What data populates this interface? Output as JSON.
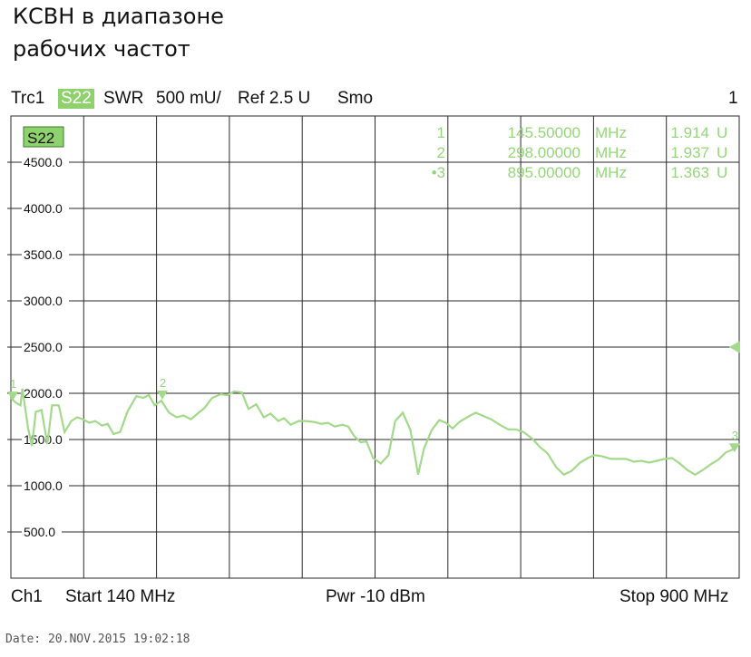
{
  "caption": {
    "line1": "КСВН в диапазоне",
    "line2": "рабочих частот"
  },
  "header": {
    "trace": "Trc1",
    "param": "S22",
    "format": "SWR",
    "scale": "500 mU/",
    "ref": "Ref 2.5 U",
    "smoothing": "Smo",
    "channel_num": "1"
  },
  "footer": {
    "channel": "Ch1",
    "start": "Start  140 MHz",
    "power": "Pwr  -10 dBm",
    "stop": "Stop  900 MHz"
  },
  "date_stamp": "Date: 20.NOV.2015   19:02:18",
  "colors": {
    "trace": "#a3d98a",
    "grid": "#2a2a2a",
    "marker_text": "#96d67a",
    "badge": "#8fd16d"
  },
  "chart_data": {
    "type": "line",
    "title": "",
    "xlabel": "",
    "ylabel": "",
    "trace_badge": "S22",
    "xlim": [
      140,
      900
    ],
    "ylim": [
      0,
      5000
    ],
    "y_tick_labels": [
      "4500.0",
      "4000.0",
      "3500.0",
      "3000.0",
      "2500.0",
      "2000.0",
      "1500.0",
      "1000.0",
      "500.0"
    ],
    "grid": true,
    "reference_level": 2500,
    "markers": [
      {
        "label": "1",
        "freq": "145.50000",
        "unit": "MHz",
        "value": "1.914",
        "value_unit": "U"
      },
      {
        "label": "2",
        "freq": "298.00000",
        "unit": "MHz",
        "value": "1.937",
        "value_unit": "U"
      },
      {
        "label": "•3",
        "freq": "895.00000",
        "unit": "MHz",
        "value": "1.363",
        "value_unit": "U"
      }
    ],
    "marker_points": [
      {
        "label": "1",
        "x": 142,
        "y": 1960
      },
      {
        "label": "2",
        "x": 298,
        "y": 1970
      },
      {
        "label": "3",
        "x": 895,
        "y": 1400
      }
    ],
    "series": [
      {
        "x": [
          140,
          145,
          150,
          152,
          158,
          162,
          166,
          172,
          178,
          183,
          190,
          196,
          203,
          209,
          215,
          222,
          228,
          235,
          241,
          247,
          254,
          262,
          271,
          278,
          284,
          290,
          297,
          305,
          313,
          320,
          328,
          336,
          342,
          350,
          359,
          366,
          373,
          381,
          388,
          396,
          404,
          411,
          419,
          425,
          432,
          440,
          448,
          456,
          464,
          471,
          478,
          486,
          492,
          498,
          505,
          511,
          518,
          526,
          534,
          541,
          549,
          557,
          565,
          571,
          579,
          587,
          594,
          601,
          608,
          616,
          625,
          634,
          641,
          650,
          659,
          667,
          675,
          684,
          692,
          700,
          709,
          717,
          725,
          734,
          742,
          749,
          757,
          766,
          774,
          782,
          790,
          798,
          806,
          814,
          822,
          830,
          838,
          846,
          854,
          862,
          870,
          878,
          886,
          895,
          900
        ],
        "y": [
          1950,
          1900,
          1870,
          2050,
          1620,
          1430,
          1800,
          1820,
          1450,
          1870,
          1870,
          1580,
          1700,
          1740,
          1720,
          1680,
          1700,
          1650,
          1670,
          1560,
          1580,
          1810,
          1970,
          1950,
          1980,
          1870,
          1920,
          1790,
          1740,
          1760,
          1720,
          1790,
          1840,
          1950,
          1990,
          1980,
          2020,
          2010,
          1830,
          1880,
          1740,
          1780,
          1700,
          1730,
          1660,
          1700,
          1700,
          1690,
          1670,
          1680,
          1640,
          1660,
          1640,
          1540,
          1470,
          1480,
          1300,
          1240,
          1330,
          1700,
          1790,
          1600,
          1120,
          1400,
          1600,
          1710,
          1680,
          1620,
          1690,
          1740,
          1790,
          1750,
          1720,
          1660,
          1610,
          1610,
          1580,
          1510,
          1420,
          1350,
          1200,
          1120,
          1160,
          1250,
          1300,
          1330,
          1320,
          1290,
          1290,
          1290,
          1260,
          1270,
          1250,
          1270,
          1290,
          1300,
          1240,
          1170,
          1120,
          1170,
          1230,
          1280,
          1360,
          1400,
          1450
        ]
      }
    ]
  }
}
